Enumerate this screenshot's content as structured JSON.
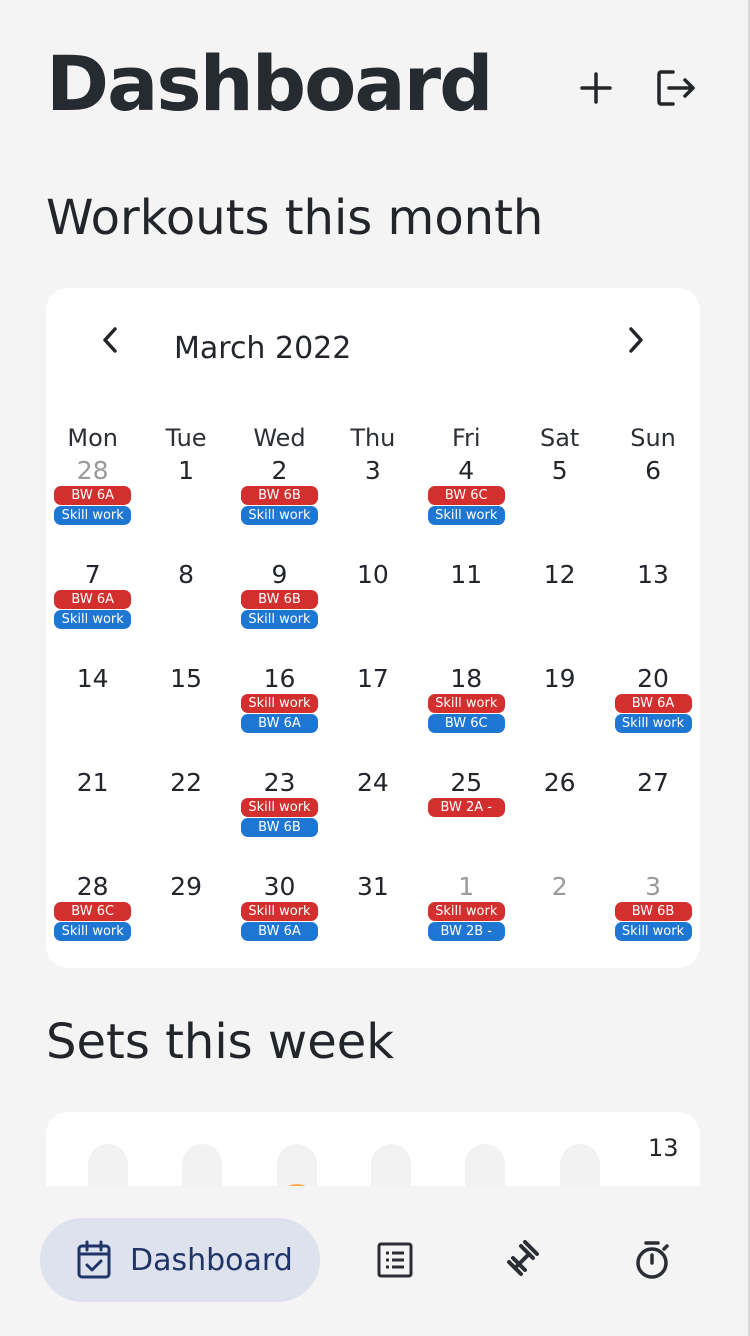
{
  "header": {
    "title": "Dashboard",
    "add_icon": "plus-icon",
    "logout_icon": "logout-icon"
  },
  "sections": {
    "workouts_title": "Workouts this month",
    "sets_title": "Sets this week"
  },
  "calendar": {
    "month_label": "March 2022",
    "prev_icon": "chevron-left-icon",
    "next_icon": "chevron-right-icon",
    "weekdays": [
      "Mon",
      "Tue",
      "Wed",
      "Thu",
      "Fri",
      "Sat",
      "Sun"
    ],
    "tag_colors": {
      "red": "#d32f2f",
      "blue": "#1e77d3"
    },
    "weeks": [
      [
        {
          "day": "28",
          "outside": true,
          "tags": [
            {
              "label": "BW 6A",
              "color": "red"
            },
            {
              "label": "Skill work",
              "color": "blue"
            }
          ]
        },
        {
          "day": "1",
          "tags": []
        },
        {
          "day": "2",
          "tags": [
            {
              "label": "BW 6B",
              "color": "red"
            },
            {
              "label": "Skill work",
              "color": "blue"
            }
          ]
        },
        {
          "day": "3",
          "tags": []
        },
        {
          "day": "4",
          "tags": [
            {
              "label": "BW 6C",
              "color": "red"
            },
            {
              "label": "Skill work",
              "color": "blue"
            }
          ]
        },
        {
          "day": "5",
          "tags": []
        },
        {
          "day": "6",
          "tags": []
        }
      ],
      [
        {
          "day": "7",
          "tags": [
            {
              "label": "BW 6A",
              "color": "red"
            },
            {
              "label": "Skill work",
              "color": "blue"
            }
          ]
        },
        {
          "day": "8",
          "tags": []
        },
        {
          "day": "9",
          "tags": [
            {
              "label": "BW 6B",
              "color": "red"
            },
            {
              "label": "Skill work",
              "color": "blue"
            }
          ]
        },
        {
          "day": "10",
          "tags": []
        },
        {
          "day": "11",
          "tags": []
        },
        {
          "day": "12",
          "tags": []
        },
        {
          "day": "13",
          "tags": []
        }
      ],
      [
        {
          "day": "14",
          "tags": []
        },
        {
          "day": "15",
          "tags": []
        },
        {
          "day": "16",
          "tags": [
            {
              "label": "Skill work",
              "color": "red"
            },
            {
              "label": "BW 6A",
              "color": "blue"
            }
          ]
        },
        {
          "day": "17",
          "tags": []
        },
        {
          "day": "18",
          "tags": [
            {
              "label": "Skill work",
              "color": "red"
            },
            {
              "label": "BW 6C",
              "color": "blue"
            }
          ]
        },
        {
          "day": "19",
          "tags": []
        },
        {
          "day": "20",
          "tags": [
            {
              "label": "BW 6A",
              "color": "red"
            },
            {
              "label": "Skill work",
              "color": "blue"
            }
          ]
        }
      ],
      [
        {
          "day": "21",
          "tags": []
        },
        {
          "day": "22",
          "tags": []
        },
        {
          "day": "23",
          "tags": [
            {
              "label": "Skill work",
              "color": "red"
            },
            {
              "label": "BW 6B",
              "color": "blue"
            }
          ]
        },
        {
          "day": "24",
          "tags": []
        },
        {
          "day": "25",
          "tags": [
            {
              "label": "BW 2A -",
              "color": "red"
            }
          ]
        },
        {
          "day": "26",
          "tags": []
        },
        {
          "day": "27",
          "tags": []
        }
      ],
      [
        {
          "day": "28",
          "tags": [
            {
              "label": "BW 6C",
              "color": "red"
            },
            {
              "label": "Skill work",
              "color": "blue"
            }
          ]
        },
        {
          "day": "29",
          "tags": []
        },
        {
          "day": "30",
          "tags": [
            {
              "label": "Skill work",
              "color": "red"
            },
            {
              "label": "BW 6A",
              "color": "blue"
            }
          ]
        },
        {
          "day": "31",
          "tags": []
        },
        {
          "day": "1",
          "outside": true,
          "tags": [
            {
              "label": "Skill work",
              "color": "red"
            },
            {
              "label": "BW 2B -",
              "color": "blue"
            }
          ]
        },
        {
          "day": "2",
          "outside": true,
          "tags": []
        },
        {
          "day": "3",
          "outside": true,
          "tags": [
            {
              "label": "BW 6B",
              "color": "red"
            },
            {
              "label": "Skill work",
              "color": "blue"
            }
          ]
        }
      ]
    ]
  },
  "sets_chart": {
    "accent": "#ffa94d",
    "max_label": "13",
    "columns": [
      {
        "fraction": 0.25
      },
      {
        "fraction": 0
      },
      {
        "fraction": 0.5
      },
      {
        "fraction": 0
      },
      {
        "fraction": 0
      },
      {
        "fraction": 0
      }
    ]
  },
  "bottom_nav": {
    "active_label": "Dashboard",
    "active_icon": "calendar-check-icon",
    "items": [
      "list-icon",
      "dumbbell-icon",
      "timer-icon"
    ]
  }
}
